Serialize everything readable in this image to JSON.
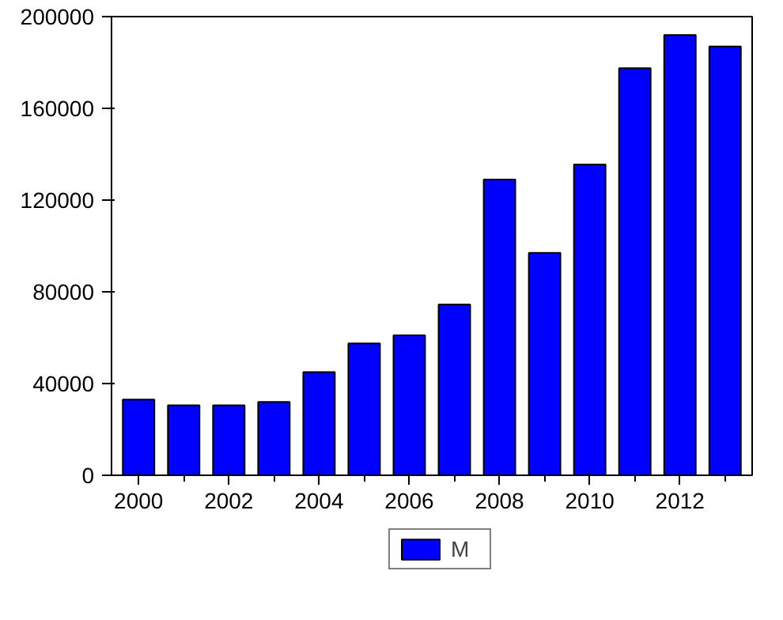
{
  "chart_data": {
    "type": "bar",
    "x": [
      2000,
      2001,
      2002,
      2003,
      2004,
      2005,
      2006,
      2007,
      2008,
      2009,
      2010,
      2011,
      2012,
      2013
    ],
    "series": [
      {
        "name": "M",
        "color": "#0000ff",
        "values": [
          33000,
          30500,
          30500,
          32000,
          45000,
          57500,
          61000,
          74500,
          129000,
          97000,
          135500,
          177500,
          192000,
          187000
        ]
      }
    ],
    "xlim": [
      1999.4,
      2013.6
    ],
    "xticks": [
      2000,
      2002,
      2004,
      2006,
      2008,
      2010,
      2012
    ],
    "ylim": [
      0,
      200000
    ],
    "yticks": [
      0,
      40000,
      80000,
      120000,
      160000,
      200000
    ],
    "grid": false,
    "legend": "bottom"
  }
}
